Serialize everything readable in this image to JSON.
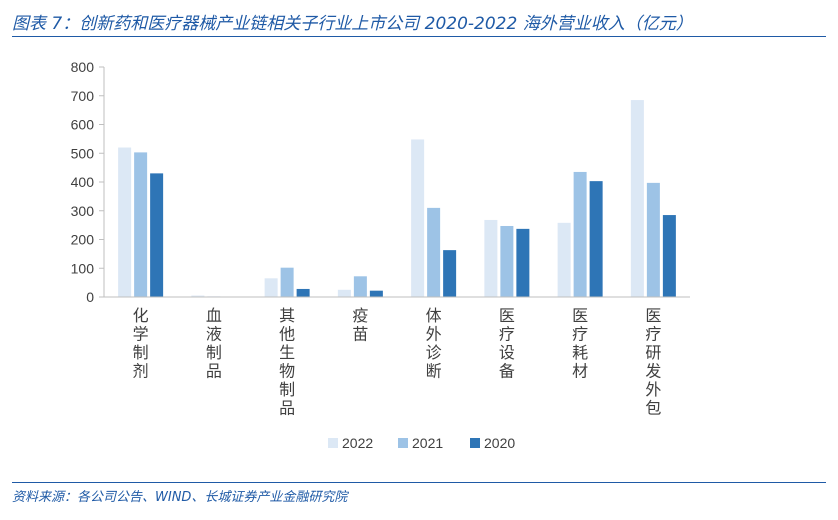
{
  "figure": {
    "title": "图表 7：创新药和医疗器械产业链相关子行业上市公司 2020-2022 海外营业收入（亿元）",
    "source": "资料来源：各公司公告、WIND、长城证券产业金融研究院"
  },
  "colors": {
    "title": "#1f5aa6",
    "axis": "#bfbfbf",
    "series_2022": "#dce8f5",
    "series_2021": "#9dc3e6",
    "series_2020": "#2e75b6"
  },
  "chart_data": {
    "type": "bar",
    "categories": [
      "化学制剂",
      "血液制品",
      "其他生物制品",
      "疫苗",
      "体外诊断",
      "医疗设备",
      "医疗耗材",
      "医疗研发外包"
    ],
    "series": [
      {
        "name": "2022",
        "values": [
          520,
          5,
          65,
          25,
          548,
          268,
          258,
          685
        ]
      },
      {
        "name": "2021",
        "values": [
          503,
          2,
          102,
          72,
          310,
          247,
          435,
          397
        ]
      },
      {
        "name": "2020",
        "values": [
          430,
          1,
          28,
          22,
          163,
          237,
          403,
          285
        ]
      }
    ],
    "ylim": [
      0,
      800
    ],
    "yticks": [
      0,
      100,
      200,
      300,
      400,
      500,
      600,
      700,
      800
    ],
    "legend_position": "bottom-center",
    "grid": false
  }
}
